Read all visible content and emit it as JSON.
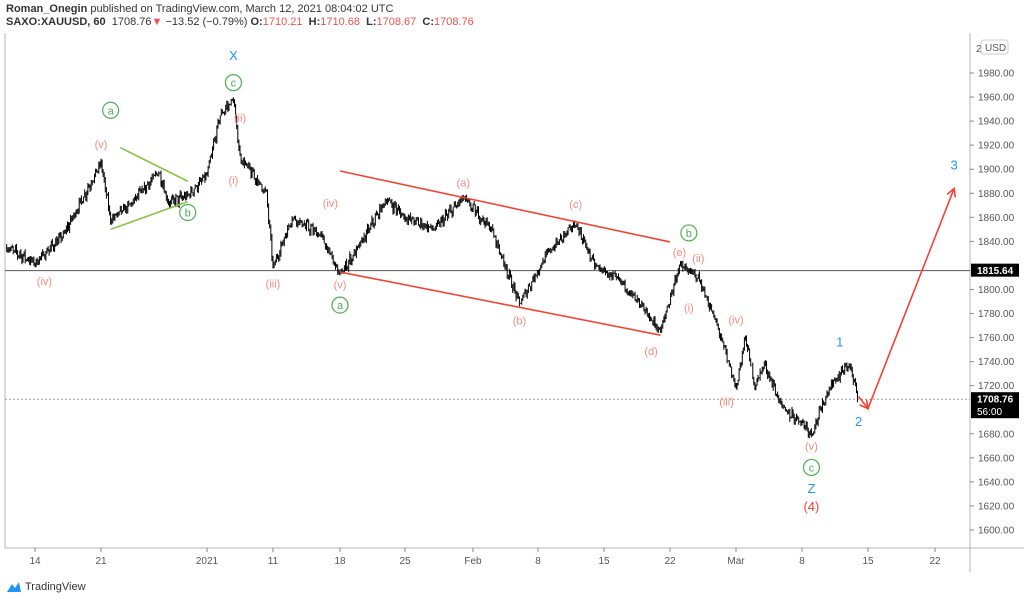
{
  "header": {
    "author": "Roman_Onegin",
    "published": "published on TradingView.com, March 12, 2021 08:04:02 UTC",
    "symbol": "SAXO:XAUUSD, 60",
    "last": "1708.76",
    "change": "−13.52 (−0.79%)",
    "o_label": "O:",
    "o": "1710.21",
    "h_label": "H:",
    "h": "1710.68",
    "l_label": "L:",
    "l": "1708.67",
    "c_label": "C:",
    "c": "1708.76"
  },
  "footer": {
    "logo_text": "TradingView"
  },
  "chart_data": {
    "type": "line",
    "style": "bars",
    "currency": "USD",
    "yticks": [
      "1980.00",
      "1960.00",
      "1940.00",
      "1920.00",
      "1900.00",
      "1880.00",
      "1860.00",
      "1840.00",
      "1800.00",
      "1780.00",
      "1760.00",
      "1740.00",
      "1720.00",
      "1680.00",
      "1660.00",
      "1640.00",
      "1620.00",
      "1600.00"
    ],
    "ytick_top_partial": "2",
    "ylim": [
      1580,
      2000
    ],
    "xticks": [
      {
        "date": "2020-12-14",
        "label": "14"
      },
      {
        "date": "2020-12-21",
        "label": "21"
      },
      {
        "date": "2021-01-01",
        "label": "2021"
      },
      {
        "date": "2021-01-11",
        "label": "11"
      },
      {
        "date": "2021-01-18",
        "label": "18"
      },
      {
        "date": "2021-01-25",
        "label": "25"
      },
      {
        "date": "2021-02-01",
        "label": "Feb"
      },
      {
        "date": "2021-02-08",
        "label": "8"
      },
      {
        "date": "2021-02-15",
        "label": "15"
      },
      {
        "date": "2021-02-22",
        "label": "22"
      },
      {
        "date": "2021-03-01",
        "label": "Mar"
      },
      {
        "date": "2021-03-08",
        "label": "8"
      },
      {
        "date": "2021-03-15",
        "label": "15"
      },
      {
        "date": "2021-03-22",
        "label": "22"
      }
    ],
    "price_path": [
      [
        "2020-12-11",
        1835
      ],
      [
        "2020-12-14",
        1822
      ],
      [
        "2020-12-17",
        1845
      ],
      [
        "2020-12-18",
        1860
      ],
      [
        "2020-12-21",
        1905
      ],
      [
        "2020-12-22",
        1858
      ],
      [
        "2020-12-24",
        1870
      ],
      [
        "2020-12-27",
        1898
      ],
      [
        "2020-12-28",
        1872
      ],
      [
        "2020-12-30",
        1878
      ],
      [
        "2021-01-01",
        1895
      ],
      [
        "2021-01-03",
        1945
      ],
      [
        "2021-01-05",
        1958
      ],
      [
        "2021-01-06",
        1910
      ],
      [
        "2021-01-10",
        1880
      ],
      [
        "2021-01-11",
        1818
      ],
      [
        "2021-01-13",
        1860
      ],
      [
        "2021-01-16",
        1845
      ],
      [
        "2021-01-18",
        1812
      ],
      [
        "2021-01-20",
        1835
      ],
      [
        "2021-01-23",
        1875
      ],
      [
        "2021-01-25",
        1860
      ],
      [
        "2021-01-28",
        1850
      ],
      [
        "2021-01-31",
        1876
      ],
      [
        "2021-02-03",
        1850
      ],
      [
        "2021-02-06",
        1788
      ],
      [
        "2021-02-09",
        1830
      ],
      [
        "2021-02-12",
        1855
      ],
      [
        "2021-02-14",
        1820
      ],
      [
        "2021-02-17",
        1805
      ],
      [
        "2021-02-21",
        1765
      ],
      [
        "2021-02-23",
        1820
      ],
      [
        "2021-02-25",
        1810
      ],
      [
        "2021-02-27",
        1770
      ],
      [
        "2021-03-01",
        1718
      ],
      [
        "2021-03-02",
        1760
      ],
      [
        "2021-03-03",
        1720
      ],
      [
        "2021-03-04",
        1738
      ],
      [
        "2021-03-06",
        1700
      ],
      [
        "2021-03-08",
        1690
      ],
      [
        "2021-03-09",
        1680
      ],
      [
        "2021-03-11",
        1720
      ],
      [
        "2021-03-13",
        1738
      ],
      [
        "2021-03-14",
        1708.76
      ]
    ],
    "horizontal_lines": [
      {
        "price": 1815.64,
        "label": "1815.64",
        "style": "solid"
      },
      {
        "price": 1708.76,
        "label": "1708.76",
        "sublabel": "56:00",
        "style": "dotted"
      }
    ],
    "trendlines": [
      {
        "color": "#8bc34a",
        "points": [
          [
            "2020-12-23",
            1918
          ],
          [
            "2020-12-30",
            1890
          ]
        ]
      },
      {
        "color": "#8bc34a",
        "points": [
          [
            "2020-12-22",
            1850
          ],
          [
            "2020-12-30",
            1873
          ]
        ]
      },
      {
        "color": "#f44336",
        "points": [
          [
            "2021-01-18",
            1898.5
          ],
          [
            "2021-02-22",
            1839.5
          ]
        ]
      },
      {
        "color": "#f44336",
        "points": [
          [
            "2021-01-18",
            1814.5
          ],
          [
            "2021-02-21",
            1762
          ]
        ]
      }
    ],
    "arrow_path": {
      "color": "#f44336",
      "points": [
        [
          "2021-03-14",
          1711
        ],
        [
          "2021-03-15",
          1701
        ],
        [
          "2021-03-24",
          1884
        ]
      ]
    },
    "colors": {
      "minor": "#f28b82",
      "circled": "#4caf50",
      "intermediate": "#2196f3",
      "primary": "#f44336"
    },
    "annotations": [
      {
        "text": "(iv)",
        "kind": "minor",
        "date": "2020-12-15",
        "price": 1807
      },
      {
        "text": "(v)",
        "kind": "minor",
        "date": "2020-12-21",
        "price": 1921
      },
      {
        "text": "a",
        "kind": "circled",
        "date": "2020-12-22",
        "price": 1949
      },
      {
        "text": "b",
        "kind": "circled",
        "date": "2020-12-30",
        "price": 1864
      },
      {
        "text": "X",
        "kind": "intermediate",
        "date": "2021-01-05",
        "price": 1994
      },
      {
        "text": "c",
        "kind": "circled",
        "date": "2021-01-05",
        "price": 1972
      },
      {
        "text": "(ii)",
        "kind": "minor",
        "date": "2021-01-06",
        "price": 1943
      },
      {
        "text": "(i)",
        "kind": "minor",
        "date": "2021-01-05",
        "price": 1891
      },
      {
        "text": "(iii)",
        "kind": "minor",
        "date": "2021-01-11",
        "price": 1805
      },
      {
        "text": "(iv)",
        "kind": "minor",
        "date": "2021-01-17",
        "price": 1872
      },
      {
        "text": "(v)",
        "kind": "minor",
        "date": "2021-01-18",
        "price": 1804
      },
      {
        "text": "a",
        "kind": "circled",
        "date": "2021-01-18",
        "price": 1787
      },
      {
        "text": "(a)",
        "kind": "minor",
        "date": "2021-01-31",
        "price": 1889
      },
      {
        "text": "(b)",
        "kind": "minor",
        "date": "2021-02-06",
        "price": 1774
      },
      {
        "text": "(c)",
        "kind": "minor",
        "date": "2021-02-12",
        "price": 1871
      },
      {
        "text": "(d)",
        "kind": "minor",
        "date": "2021-02-20",
        "price": 1749
      },
      {
        "text": "b",
        "kind": "circled",
        "date": "2021-02-24",
        "price": 1847
      },
      {
        "text": "(e)",
        "kind": "minor",
        "date": "2021-02-23",
        "price": 1831
      },
      {
        "text": "(ii)",
        "kind": "minor",
        "date": "2021-02-25",
        "price": 1826
      },
      {
        "text": "(i)",
        "kind": "minor",
        "date": "2021-02-24",
        "price": 1785
      },
      {
        "text": "(iv)",
        "kind": "minor",
        "date": "2021-03-01",
        "price": 1775
      },
      {
        "text": "(iii)",
        "kind": "minor",
        "date": "2021-02-28",
        "price": 1707
      },
      {
        "text": "(v)",
        "kind": "minor",
        "date": "2021-03-09",
        "price": 1670
      },
      {
        "text": "c",
        "kind": "circled",
        "date": "2021-03-09",
        "price": 1652
      },
      {
        "text": "Z",
        "kind": "intermediate",
        "date": "2021-03-09",
        "price": 1634
      },
      {
        "text": "(4)",
        "kind": "primary",
        "date": "2021-03-09",
        "price": 1619
      },
      {
        "text": "1",
        "kind": "intermediate",
        "date": "2021-03-12",
        "price": 1756
      },
      {
        "text": "2",
        "kind": "intermediate",
        "date": "2021-03-14",
        "price": 1690
      },
      {
        "text": "3",
        "kind": "intermediate",
        "date": "2021-03-24",
        "price": 1903
      }
    ]
  }
}
